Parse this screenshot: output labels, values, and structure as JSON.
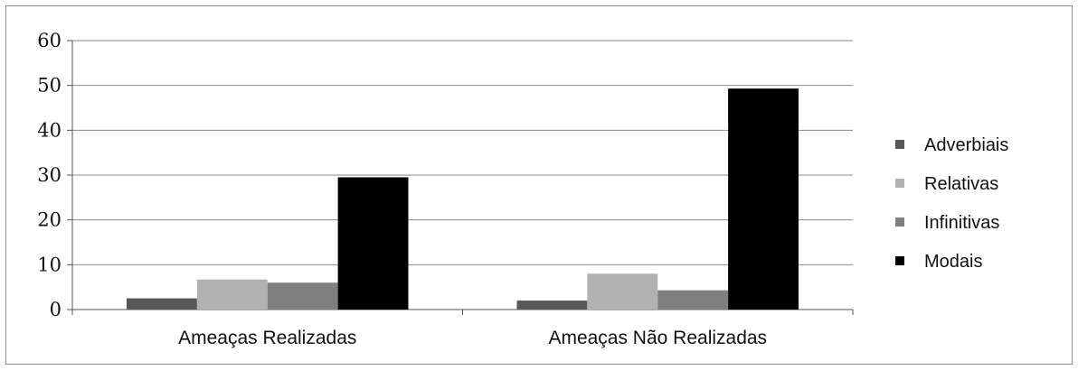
{
  "chart_data": {
    "type": "bar",
    "categories": [
      "Ameaças Realizadas",
      "Ameaças Não Realizadas"
    ],
    "series": [
      {
        "name": "Adverbiais",
        "values": [
          2.5,
          2
        ],
        "color": "#585858"
      },
      {
        "name": "Relativas",
        "values": [
          6.7,
          8
        ],
        "color": "#b2b2b2"
      },
      {
        "name": "Infinitivas",
        "values": [
          6,
          4.3
        ],
        "color": "#7f7f7f"
      },
      {
        "name": "Modais",
        "values": [
          29.5,
          49.3
        ],
        "color": "#000000"
      }
    ],
    "yticks": [
      "0",
      "10",
      "20",
      "30",
      "40",
      "50",
      "60"
    ],
    "ylim": [
      0,
      60
    ],
    "grid": true,
    "legend_position": "right",
    "title": "",
    "xlabel": "",
    "ylabel": ""
  }
}
